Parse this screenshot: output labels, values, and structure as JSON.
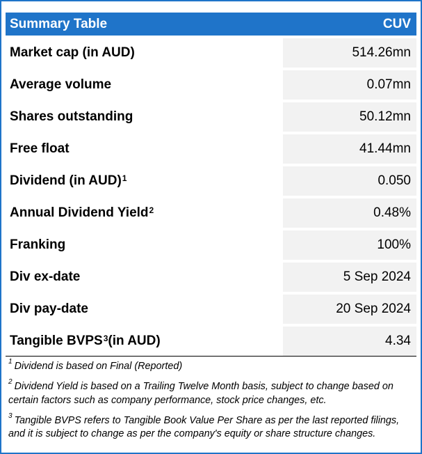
{
  "header": {
    "title": "Summary Table",
    "ticker": "CUV"
  },
  "rows": [
    {
      "label": "Market cap (in AUD)",
      "sup": "",
      "value": "514.26mn"
    },
    {
      "label": "Average volume",
      "sup": "",
      "value": "0.07mn"
    },
    {
      "label": "Shares outstanding",
      "sup": "",
      "value": "50.12mn"
    },
    {
      "label": "Free float",
      "sup": "",
      "value": "41.44mn"
    },
    {
      "label": "Dividend (in AUD)",
      "sup": "1",
      "value": "0.050"
    },
    {
      "label": "Annual Dividend Yield",
      "sup": "2",
      "value": "0.48%"
    },
    {
      "label": "Franking",
      "sup": "",
      "value": "100%"
    },
    {
      "label": "Div ex-date",
      "sup": "",
      "value": "5 Sep 2024"
    },
    {
      "label": "Div pay-date",
      "sup": "",
      "value": "20 Sep 2024"
    },
    {
      "label": "Tangible BVPS",
      "sup": "3",
      "label_suffix": " (in AUD)",
      "value": "4.34"
    }
  ],
  "footnotes": [
    {
      "num": "1",
      "text": "Dividend is based on Final (Reported)"
    },
    {
      "num": "2",
      "text": "Dividend Yield is based on a Trailing Twelve Month basis, subject to change based on certain factors such as company performance, stock price changes, etc."
    },
    {
      "num": "3",
      "text": "Tangible BVPS refers to Tangible Book Value Per Share as per the last reported filings, and it is subject to change as per the company's equity or share structure changes."
    }
  ],
  "colors": {
    "header_bg": "#1f74c9",
    "value_bg": "#f2f2f2"
  }
}
